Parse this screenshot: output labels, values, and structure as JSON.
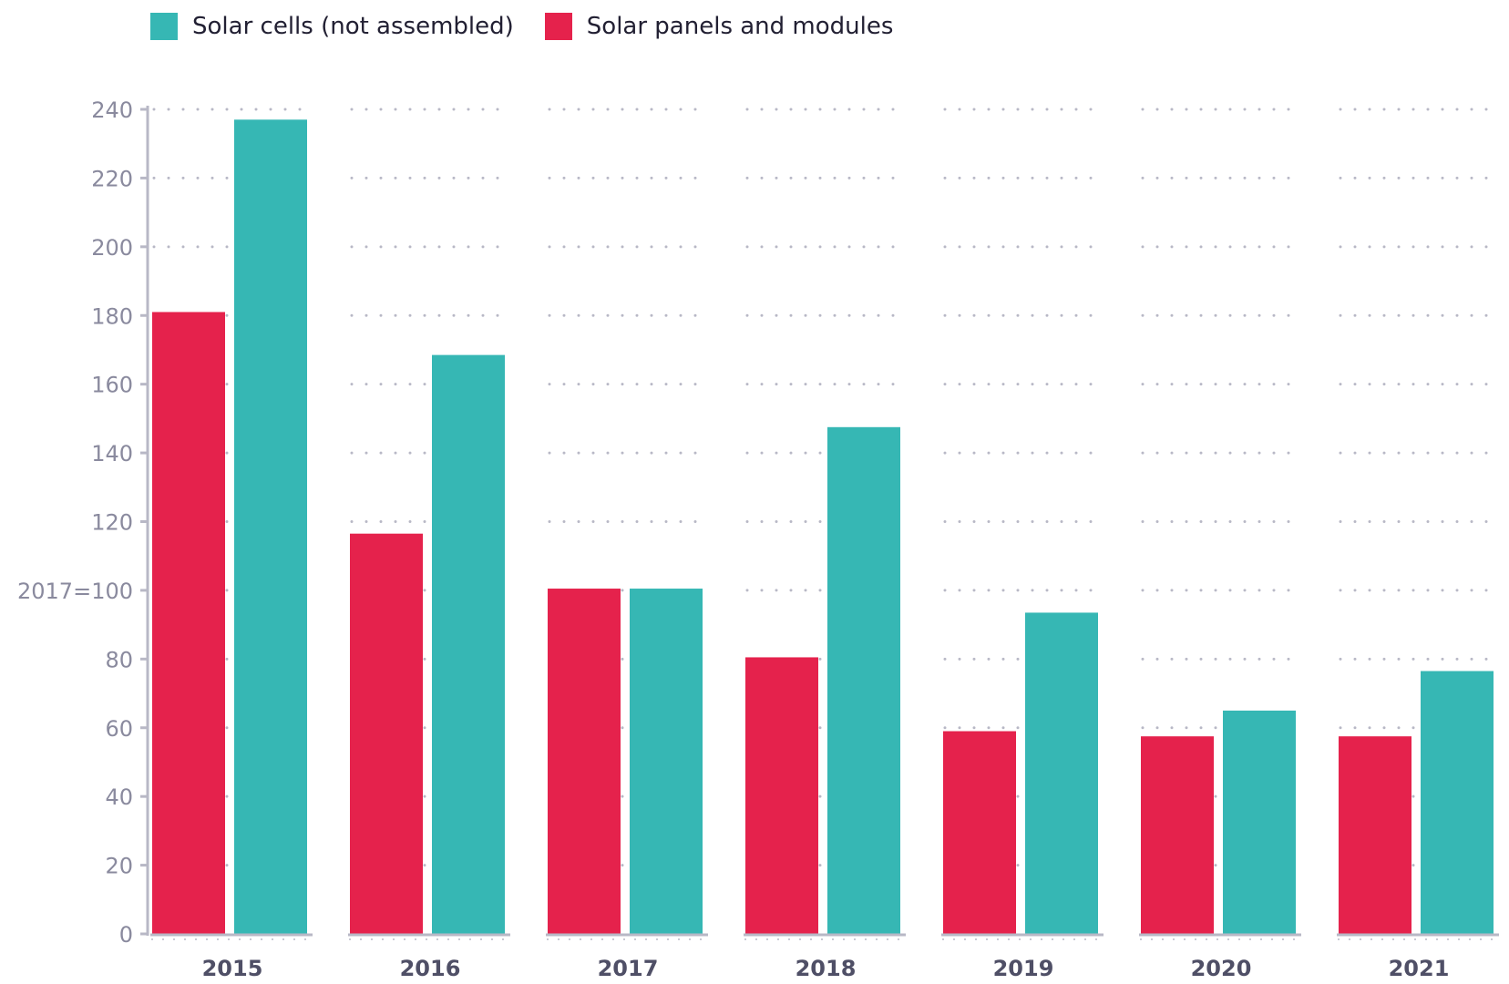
{
  "chart_data": {
    "type": "bar",
    "categories": [
      "2015",
      "2016",
      "2017",
      "2018",
      "2019",
      "2020",
      "2021"
    ],
    "series": [
      {
        "name": "Solar panels and modules",
        "color": "#e5224c",
        "values": [
          181,
          116.5,
          100.5,
          80.5,
          59,
          57.5,
          57.5
        ]
      },
      {
        "name": "Solar cells (not assembled)",
        "color": "#36b7b4",
        "values": [
          237,
          168.5,
          100.5,
          147.5,
          93.5,
          65,
          76.5
        ]
      }
    ],
    "ylim": [
      0,
      240
    ],
    "yticks": [
      {
        "value": 0,
        "label": "0"
      },
      {
        "value": 20,
        "label": "20"
      },
      {
        "value": 40,
        "label": "40"
      },
      {
        "value": 60,
        "label": "60"
      },
      {
        "value": 80,
        "label": "80"
      },
      {
        "value": 100,
        "label": "2017=100"
      },
      {
        "value": 120,
        "label": "120"
      },
      {
        "value": 140,
        "label": "140"
      },
      {
        "value": 160,
        "label": "160"
      },
      {
        "value": 180,
        "label": "180"
      },
      {
        "value": 200,
        "label": "200"
      },
      {
        "value": 220,
        "label": "220"
      },
      {
        "value": 240,
        "label": "240"
      }
    ],
    "grid": true,
    "legend_position": "top-left",
    "legend": [
      {
        "label": "Solar cells (not assembled)",
        "color": "#36b7b4"
      },
      {
        "label": "Solar panels and modules",
        "color": "#e5224c"
      }
    ],
    "axis_color": "#b8b8c6",
    "tick_label_color": "#8a8a9e",
    "category_label_color": "#4f4f66"
  }
}
